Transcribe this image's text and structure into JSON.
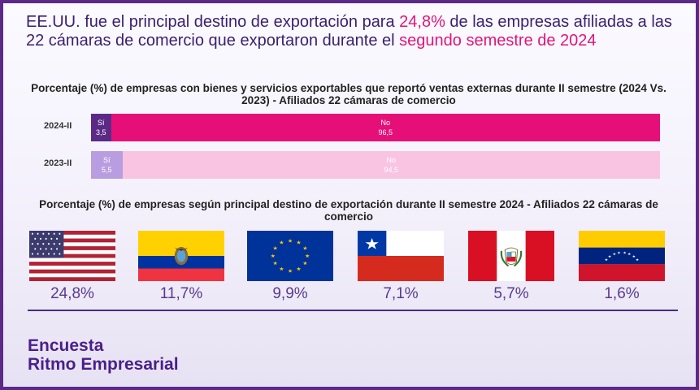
{
  "headline": {
    "part1": "EE.UU. fue el principal destino de exportación para ",
    "highlight1": "24,8%",
    "part2": " de las empresas afiliadas a las 22 cámaras de comercio que exportaron durante el ",
    "highlight2": "segundo semestre de 2024"
  },
  "colors": {
    "si_2024": "#5b2a86",
    "no_2024": "#e60f78",
    "si_2023": "#b89ee0",
    "no_2023": "#f8c4e1",
    "accent": "#e0157a"
  },
  "chart_data": [
    {
      "type": "bar",
      "orientation": "horizontal-stacked",
      "title": "Porcentaje (%) de empresas con bienes y servicios exportables que reportó ventas externas durante II semestre (2024 Vs. 2023) - Afiliados 22 cámaras de comercio",
      "categories": [
        "2024-II",
        "2023-II"
      ],
      "series": [
        {
          "name": "Sí",
          "values": [
            3.5,
            5.5
          ],
          "labels": [
            "3,5",
            "5,5"
          ]
        },
        {
          "name": "No",
          "values": [
            96.5,
            94.5
          ],
          "labels": [
            "96,5",
            "94,5"
          ]
        }
      ]
    },
    {
      "type": "table",
      "title": "Porcentaje (%) de empresas según principal destino de exportación durante II semestre 2024 - Afiliados 22 cámaras de comercio",
      "categories": [
        "usa-flag",
        "ecuador-flag",
        "eu-flag",
        "chile-flag",
        "peru-flag",
        "venezuela-flag"
      ],
      "values": [
        24.8,
        11.7,
        9.9,
        7.1,
        5.7,
        1.6
      ],
      "labels": [
        "24,8%",
        "11,7%",
        "9,9%",
        "7,1%",
        "5,7%",
        "1,6%"
      ]
    }
  ],
  "brand": {
    "line1": "Encuesta",
    "line2": "Ritmo Empresarial"
  }
}
